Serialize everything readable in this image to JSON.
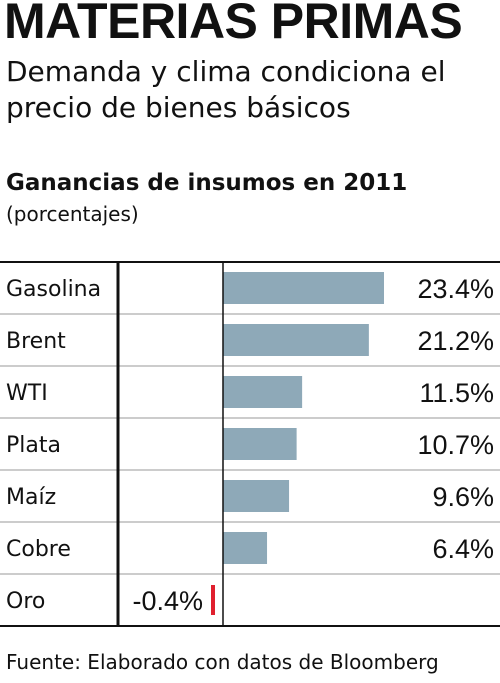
{
  "header": {
    "headline": "MATERIAS PRIMAS",
    "subtitle": "Demanda y clima condiciona el precio de bienes básicos"
  },
  "chart_data": {
    "type": "bar",
    "orientation": "horizontal",
    "title": "Ganancias de insumos en 2011",
    "unit_label": "(porcentajes)",
    "categories": [
      "Gasolina",
      "Brent",
      "WTI",
      "Plata",
      "Maíz",
      "Cobre",
      "Oro"
    ],
    "values": [
      23.4,
      21.2,
      11.5,
      10.7,
      9.6,
      6.4,
      -0.4
    ],
    "value_labels": [
      "23.4%",
      "21.2%",
      "11.5%",
      "10.7%",
      "9.6%",
      "6.4%",
      "-0.4%"
    ],
    "xlim": [
      -0.4,
      23.4
    ],
    "grid": false,
    "legend": "none"
  },
  "colors": {
    "positive_bar": "#8ea9b8",
    "negative_bar": "#e0202e",
    "rule": "#111111"
  },
  "footer": {
    "source": "Fuente: Elaborado con datos de Bloomberg"
  }
}
